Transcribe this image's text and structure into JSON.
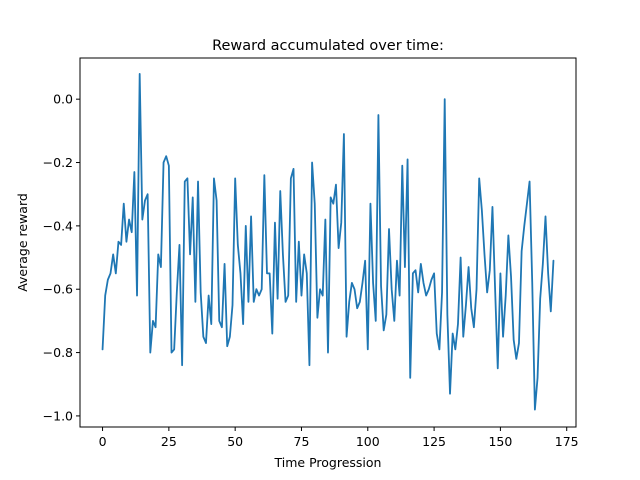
{
  "chart_data": {
    "type": "line",
    "title": "Reward accumulated over time:",
    "xlabel": "Time Progression",
    "ylabel": "Average reward",
    "xlim": [
      -8.5,
      178.5
    ],
    "ylim": [
      -1.035,
      0.13
    ],
    "xticks": [
      0,
      25,
      50,
      75,
      100,
      125,
      150,
      175
    ],
    "yticks": [
      -1.0,
      -0.8,
      -0.6,
      -0.4,
      -0.2,
      0.0
    ],
    "xtick_labels": [
      "0",
      "25",
      "50",
      "75",
      "100",
      "125",
      "150",
      "175"
    ],
    "ytick_labels": [
      "−1.0",
      "−0.8",
      "−0.6",
      "−0.4",
      "−0.2",
      "0.0"
    ],
    "grid": false,
    "color": "#1f77b4",
    "x_start": 0,
    "series": [
      {
        "values": [
          -0.79,
          -0.62,
          -0.57,
          -0.55,
          -0.49,
          -0.55,
          -0.45,
          -0.46,
          -0.33,
          -0.45,
          -0.38,
          -0.42,
          -0.23,
          -0.62,
          0.08,
          -0.38,
          -0.32,
          -0.3,
          -0.8,
          -0.7,
          -0.72,
          -0.49,
          -0.53,
          -0.2,
          -0.18,
          -0.21,
          -0.8,
          -0.79,
          -0.61,
          -0.46,
          -0.84,
          -0.26,
          -0.25,
          -0.49,
          -0.31,
          -0.64,
          -0.26,
          -0.61,
          -0.75,
          -0.77,
          -0.62,
          -0.71,
          -0.25,
          -0.32,
          -0.7,
          -0.72,
          -0.52,
          -0.78,
          -0.75,
          -0.65,
          -0.25,
          -0.46,
          -0.55,
          -0.71,
          -0.4,
          -0.64,
          -0.37,
          -0.64,
          -0.6,
          -0.62,
          -0.6,
          -0.24,
          -0.55,
          -0.55,
          -0.74,
          -0.39,
          -0.63,
          -0.29,
          -0.49,
          -0.64,
          -0.62,
          -0.25,
          -0.22,
          -0.64,
          -0.45,
          -0.62,
          -0.49,
          -0.55,
          -0.84,
          -0.2,
          -0.33,
          -0.69,
          -0.6,
          -0.62,
          -0.38,
          -0.8,
          -0.31,
          -0.33,
          -0.27,
          -0.47,
          -0.39,
          -0.11,
          -0.75,
          -0.64,
          -0.58,
          -0.6,
          -0.66,
          -0.64,
          -0.58,
          -0.51,
          -0.79,
          -0.33,
          -0.58,
          -0.7,
          -0.05,
          -0.59,
          -0.73,
          -0.68,
          -0.41,
          -0.6,
          -0.7,
          -0.51,
          -0.62,
          -0.21,
          -0.53,
          -0.19,
          -0.88,
          -0.55,
          -0.54,
          -0.61,
          -0.52,
          -0.58,
          -0.62,
          -0.6,
          -0.57,
          -0.55,
          -0.74,
          -0.79,
          -0.61,
          0.0,
          -0.68,
          -0.93,
          -0.74,
          -0.79,
          -0.71,
          -0.5,
          -0.75,
          -0.65,
          -0.53,
          -0.66,
          -0.72,
          -0.6,
          -0.25,
          -0.35,
          -0.49,
          -0.61,
          -0.54,
          -0.34,
          -0.6,
          -0.85,
          -0.55,
          -0.75,
          -0.62,
          -0.43,
          -0.56,
          -0.76,
          -0.82,
          -0.77,
          -0.48,
          -0.4,
          -0.33,
          -0.26,
          -0.58,
          -0.98,
          -0.88,
          -0.63,
          -0.52,
          -0.37,
          -0.55,
          -0.67,
          -0.51
        ]
      }
    ]
  }
}
